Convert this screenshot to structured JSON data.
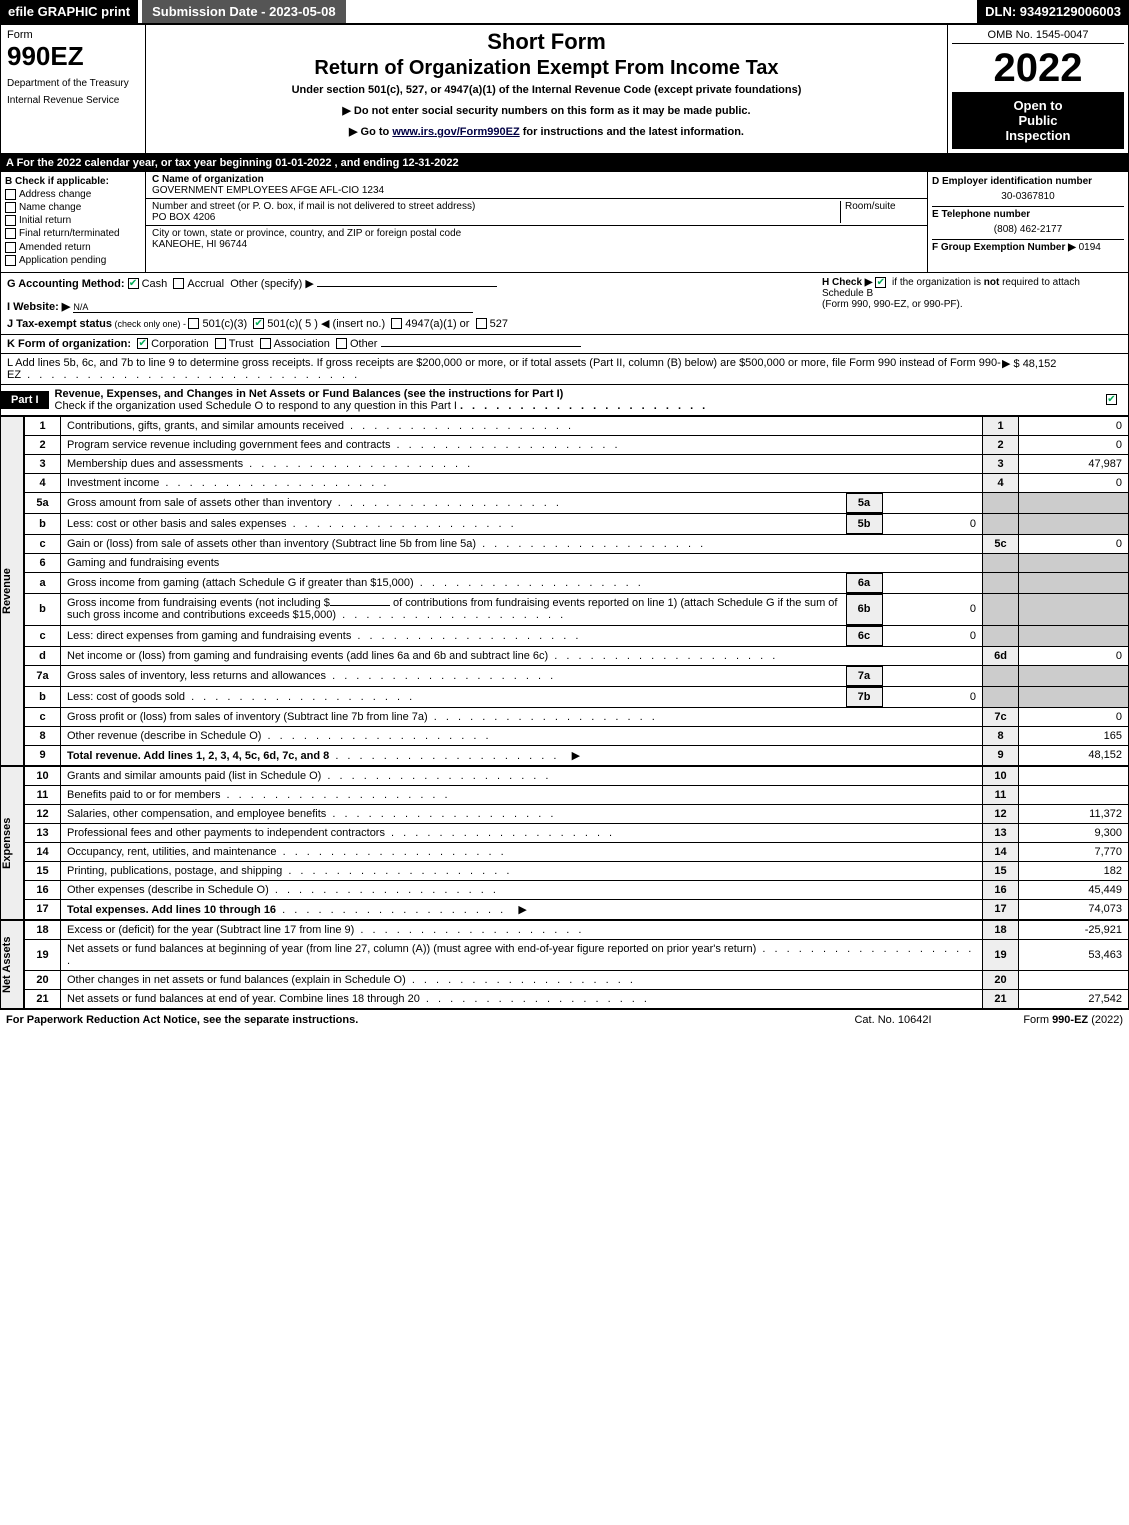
{
  "topbar": {
    "efile": "efile GRAPHIC print",
    "submission": "Submission Date - 2023-05-08",
    "dln": "DLN: 93492129006003"
  },
  "header": {
    "form_label": "Form",
    "form_num": "990EZ",
    "dept1": "Department of the Treasury",
    "dept2": "Internal Revenue Service",
    "short": "Short Form",
    "title": "Return of Organization Exempt From Income Tax",
    "under": "Under section 501(c), 527, or 4947(a)(1) of the Internal Revenue Code (except private foundations)",
    "notice1": "▶ Do not enter social security numbers on this form as it may be made public.",
    "notice2_pre": "▶ Go to ",
    "notice2_link": "www.irs.gov/Form990EZ",
    "notice2_post": " for instructions and the latest information.",
    "omb": "OMB No. 1545-0047",
    "year": "2022",
    "open1": "Open to",
    "open2": "Public",
    "open3": "Inspection"
  },
  "row_a": "A  For the 2022 calendar year, or tax year beginning 01-01-2022 , and ending 12-31-2022",
  "section_b": {
    "hdr": "B  Check if applicable:",
    "opts": [
      "Address change",
      "Name change",
      "Initial return",
      "Final return/terminated",
      "Amended return",
      "Application pending"
    ]
  },
  "section_c": {
    "name_lbl": "C Name of organization",
    "name": "GOVERNMENT EMPLOYEES AFGE AFL-CIO 1234",
    "street_lbl": "Number and street (or P. O. box, if mail is not delivered to street address)",
    "room_lbl": "Room/suite",
    "street": "PO BOX 4206",
    "city_lbl": "City or town, state or province, country, and ZIP or foreign postal code",
    "city": "KANEOHE, HI  96744"
  },
  "section_d": {
    "ein_lbl": "D Employer identification number",
    "ein": "30-0367810",
    "tel_lbl": "E Telephone number",
    "tel": "(808) 462-2177",
    "grp_lbl": "F Group Exemption Number  ▶",
    "grp": "0194"
  },
  "section_g": {
    "g_lbl": "G Accounting Method:",
    "g_cash": "Cash",
    "g_accrual": "Accrual",
    "g_other": "Other (specify) ▶",
    "h_lbl": "H  Check ▶",
    "h_txt1": "if the organization is ",
    "h_not": "not",
    "h_txt2": " required to attach Schedule B",
    "h_txt3": "(Form 990, 990-EZ, or 990-PF).",
    "i_lbl": "I Website: ▶",
    "i_val": "N/A",
    "j_lbl": "J Tax-exempt status",
    "j_sub": " (check only one) - ",
    "j_501c3": "501(c)(3)",
    "j_501c": "501(c)( 5 ) ◀ (insert no.)",
    "j_4947": "4947(a)(1) or",
    "j_527": "527"
  },
  "row_k": {
    "lbl": "K Form of organization:",
    "corp": "Corporation",
    "trust": "Trust",
    "assoc": "Association",
    "other": "Other"
  },
  "row_l": {
    "txt": "L Add lines 5b, 6c, and 7b to line 9 to determine gross receipts. If gross receipts are $200,000 or more, or if total assets (Part II, column (B) below) are $500,000 or more, file Form 990 instead of Form 990-EZ",
    "amt": "▶ $ 48,152"
  },
  "part1": {
    "label": "Part I",
    "title": "Revenue, Expenses, and Changes in Net Assets or Fund Balances (see the instructions for Part I)",
    "check": "Check if the organization used Schedule O to respond to any question in this Part I"
  },
  "revenue_lines": [
    {
      "n": "1",
      "txt": "Contributions, gifts, grants, and similar amounts received",
      "col": "1",
      "amt": "0"
    },
    {
      "n": "2",
      "txt": "Program service revenue including government fees and contracts",
      "col": "2",
      "amt": "0"
    },
    {
      "n": "3",
      "txt": "Membership dues and assessments",
      "col": "3",
      "amt": "47,987"
    },
    {
      "n": "4",
      "txt": "Investment income",
      "col": "4",
      "amt": "0"
    }
  ],
  "line5a": {
    "n": "5a",
    "txt": "Gross amount from sale of assets other than inventory",
    "sub": "5a",
    "subamt": ""
  },
  "line5b": {
    "n": "b",
    "txt": "Less: cost or other basis and sales expenses",
    "sub": "5b",
    "subamt": "0"
  },
  "line5c": {
    "n": "c",
    "txt": "Gain or (loss) from sale of assets other than inventory (Subtract line 5b from line 5a)",
    "col": "5c",
    "amt": "0"
  },
  "line6": {
    "n": "6",
    "txt": "Gaming and fundraising events"
  },
  "line6a": {
    "n": "a",
    "txt": "Gross income from gaming (attach Schedule G if greater than $15,000)",
    "sub": "6a",
    "subamt": ""
  },
  "line6b": {
    "n": "b",
    "txt1": "Gross income from fundraising events (not including $",
    "txt2": " of contributions from fundraising events reported on line 1) (attach Schedule G if the sum of such gross income and contributions exceeds $15,000)",
    "sub": "6b",
    "subamt": "0"
  },
  "line6c": {
    "n": "c",
    "txt": "Less: direct expenses from gaming and fundraising events",
    "sub": "6c",
    "subamt": "0"
  },
  "line6d": {
    "n": "d",
    "txt": "Net income or (loss) from gaming and fundraising events (add lines 6a and 6b and subtract line 6c)",
    "col": "6d",
    "amt": "0"
  },
  "line7a": {
    "n": "7a",
    "txt": "Gross sales of inventory, less returns and allowances",
    "sub": "7a",
    "subamt": ""
  },
  "line7b": {
    "n": "b",
    "txt": "Less: cost of goods sold",
    "sub": "7b",
    "subamt": "0"
  },
  "line7c": {
    "n": "c",
    "txt": "Gross profit or (loss) from sales of inventory (Subtract line 7b from line 7a)",
    "col": "7c",
    "amt": "0"
  },
  "line8": {
    "n": "8",
    "txt": "Other revenue (describe in Schedule O)",
    "col": "8",
    "amt": "165"
  },
  "line9": {
    "n": "9",
    "txt": "Total revenue. Add lines 1, 2, 3, 4, 5c, 6d, 7c, and 8",
    "arrow": "▶",
    "col": "9",
    "amt": "48,152"
  },
  "expense_lines": [
    {
      "n": "10",
      "txt": "Grants and similar amounts paid (list in Schedule O)",
      "col": "10",
      "amt": ""
    },
    {
      "n": "11",
      "txt": "Benefits paid to or for members",
      "col": "11",
      "amt": ""
    },
    {
      "n": "12",
      "txt": "Salaries, other compensation, and employee benefits",
      "col": "12",
      "amt": "11,372"
    },
    {
      "n": "13",
      "txt": "Professional fees and other payments to independent contractors",
      "col": "13",
      "amt": "9,300"
    },
    {
      "n": "14",
      "txt": "Occupancy, rent, utilities, and maintenance",
      "col": "14",
      "amt": "7,770"
    },
    {
      "n": "15",
      "txt": "Printing, publications, postage, and shipping",
      "col": "15",
      "amt": "182"
    },
    {
      "n": "16",
      "txt": "Other expenses (describe in Schedule O)",
      "col": "16",
      "amt": "45,449"
    },
    {
      "n": "17",
      "txt": "Total expenses. Add lines 10 through 16",
      "arrow": "▶",
      "col": "17",
      "amt": "74,073",
      "bold": true
    }
  ],
  "net_lines": [
    {
      "n": "18",
      "txt": "Excess or (deficit) for the year (Subtract line 17 from line 9)",
      "col": "18",
      "amt": "-25,921"
    },
    {
      "n": "19",
      "txt": "Net assets or fund balances at beginning of year (from line 27, column (A)) (must agree with end-of-year figure reported on prior year's return)",
      "col": "19",
      "amt": "53,463"
    },
    {
      "n": "20",
      "txt": "Other changes in net assets or fund balances (explain in Schedule O)",
      "col": "20",
      "amt": ""
    },
    {
      "n": "21",
      "txt": "Net assets or fund balances at end of year. Combine lines 18 through 20",
      "col": "21",
      "amt": "27,542"
    }
  ],
  "side_labels": {
    "rev": "Revenue",
    "exp": "Expenses",
    "net": "Net Assets"
  },
  "footer": {
    "l": "For Paperwork Reduction Act Notice, see the separate instructions.",
    "m": "Cat. No. 10642I",
    "r_pre": "Form ",
    "r_form": "990-EZ",
    "r_post": " (2022)"
  }
}
